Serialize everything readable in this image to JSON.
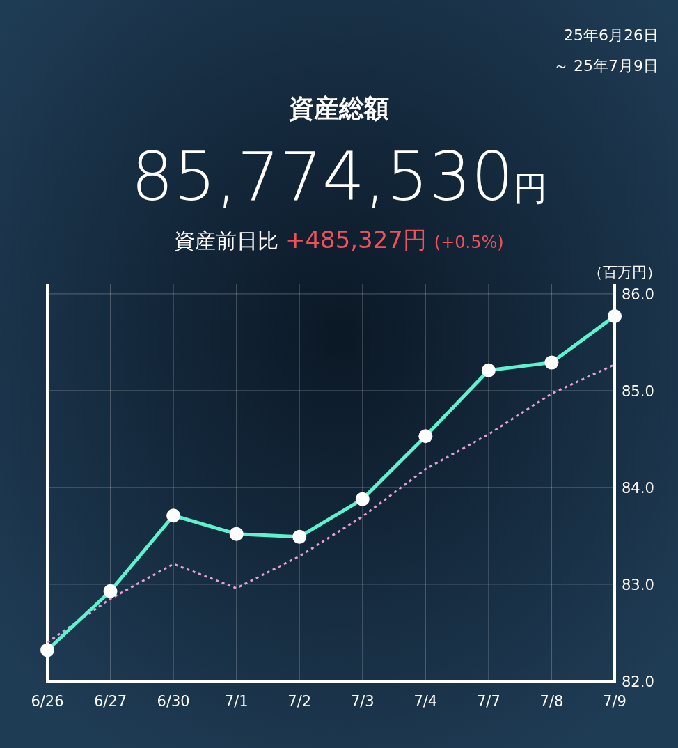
{
  "chart_data": {
    "type": "line",
    "title": "資産総額",
    "subtitle": "85,774,530円",
    "ylabel": "（百万円）",
    "annotations": [
      "25年6月26日",
      "～ 25年7月9日",
      "資産前日比",
      "+485,327円",
      "(+0.5%)"
    ],
    "categories": [
      "6/26",
      "6/27",
      "6/30",
      "7/1",
      "7/2",
      "7/3",
      "7/4",
      "7/7",
      "7/8",
      "7/9"
    ],
    "series": [
      {
        "color": "#5ef2cf",
        "marker": "circle",
        "line_style": "solid",
        "values": [
          82.32,
          82.93,
          83.71,
          83.52,
          83.49,
          83.88,
          84.53,
          85.21,
          85.29,
          85.77
        ]
      },
      {
        "color": "#e3a1d6",
        "marker": "none",
        "line_style": "dotted",
        "values": [
          82.4,
          82.85,
          83.21,
          82.96,
          83.29,
          83.7,
          84.19,
          84.55,
          84.97,
          85.27
        ]
      }
    ],
    "ylim": [
      82,
      86.1
    ],
    "yticks": [
      {
        "value": 82,
        "label": "82.0"
      },
      {
        "value": 83,
        "label": "83.0"
      },
      {
        "value": 84,
        "label": "84.0"
      },
      {
        "value": 85,
        "label": "85.0"
      },
      {
        "value": 86,
        "label": "86.0"
      }
    ],
    "grid": true
  }
}
